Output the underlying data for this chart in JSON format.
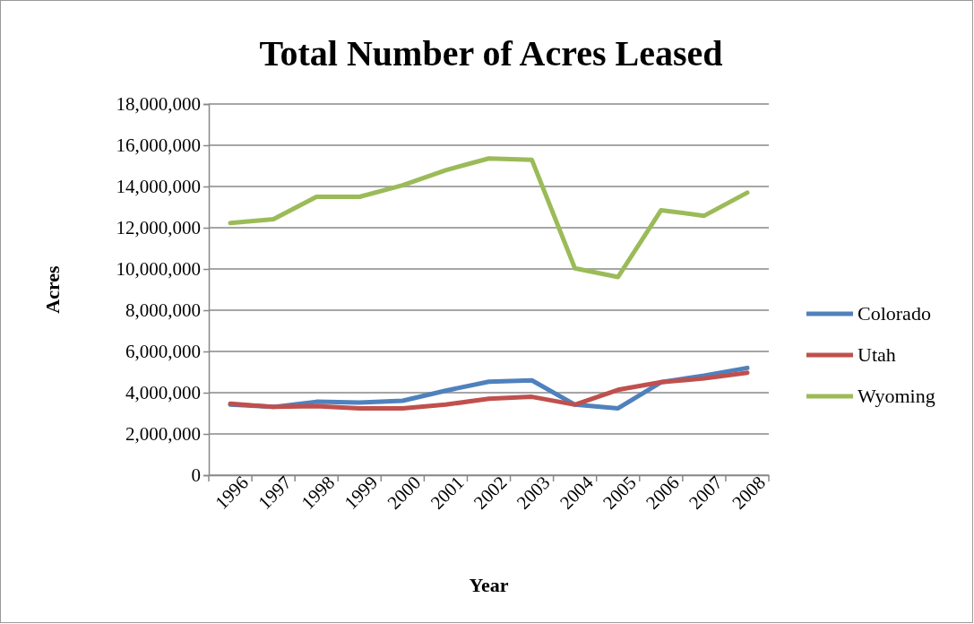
{
  "chart_data": {
    "type": "line",
    "title": "Total Number of Acres Leased",
    "xlabel": "Year",
    "ylabel": "Acres",
    "categories": [
      "1996",
      "1997",
      "1998",
      "1999",
      "2000",
      "2001",
      "2002",
      "2003",
      "2004",
      "2005",
      "2006",
      "2007",
      "2008"
    ],
    "series": [
      {
        "name": "Colorado",
        "color": "#4f81bd",
        "values": [
          3420000,
          3310000,
          3560000,
          3520000,
          3610000,
          4100000,
          4530000,
          4600000,
          3420000,
          3240000,
          4510000,
          4830000,
          5200000
        ]
      },
      {
        "name": "Utah",
        "color": "#c0504d",
        "values": [
          3470000,
          3310000,
          3350000,
          3240000,
          3240000,
          3420000,
          3710000,
          3800000,
          3420000,
          4140000,
          4510000,
          4690000,
          4970000
        ]
      },
      {
        "name": "Wyoming",
        "color": "#9bbb59",
        "values": [
          12230000,
          12410000,
          13500000,
          13500000,
          14060000,
          14790000,
          15360000,
          15290000,
          10030000,
          9610000,
          12850000,
          12580000,
          13700000
        ]
      }
    ],
    "ylim": [
      0,
      18000000
    ],
    "yticks": [
      {
        "value": 0,
        "label": "0"
      },
      {
        "value": 2000000,
        "label": "2,000,000"
      },
      {
        "value": 4000000,
        "label": "4,000,000"
      },
      {
        "value": 6000000,
        "label": "6,000,000"
      },
      {
        "value": 8000000,
        "label": "8,000,000"
      },
      {
        "value": 10000000,
        "label": "10,000,000"
      },
      {
        "value": 12000000,
        "label": "12,000,000"
      },
      {
        "value": 14000000,
        "label": "14,000,000"
      },
      {
        "value": 16000000,
        "label": "16,000,000"
      },
      {
        "value": 18000000,
        "label": "18,000,000"
      }
    ],
    "grid": "y",
    "legend": "right",
    "marker": "none",
    "line_style": "solid"
  }
}
